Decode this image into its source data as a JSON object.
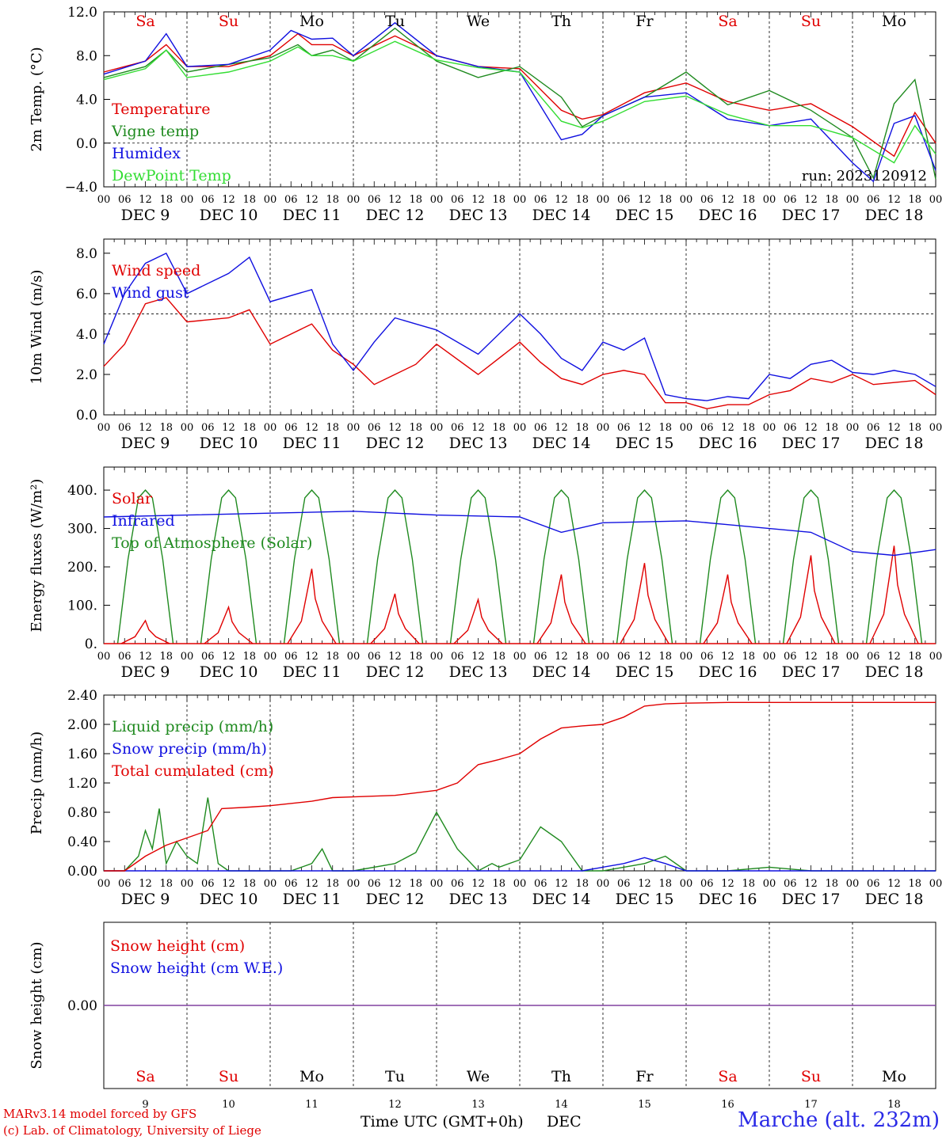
{
  "run_label": "run: 2023120912",
  "footer": {
    "credit_line1": "MARv3.14 model forced by GFS",
    "credit_line2": "(c) Lab. of Climatology, University of Liege",
    "x_title": "Time UTC (GMT+0h)",
    "x_unit": "DEC",
    "station": "Marche (alt. 232m)"
  },
  "days": [
    "Sa",
    "Su",
    "Mo",
    "Tu",
    "We",
    "Th",
    "Fr",
    "Sa",
    "Su",
    "Mo"
  ],
  "weekend_days": [
    0,
    1,
    7,
    8
  ],
  "dates": [
    "DEC  9",
    "DEC 10",
    "DEC 11",
    "DEC 12",
    "DEC 13",
    "DEC 14",
    "DEC 15",
    "DEC 16",
    "DEC 17",
    "DEC 18"
  ],
  "day_numbers": [
    "9",
    "10",
    "11",
    "12",
    "13",
    "14",
    "15",
    "16",
    "17",
    "18"
  ],
  "hour_ticks": [
    "00",
    "06",
    "12",
    "18"
  ],
  "last_hour_tick": "00",
  "colors": {
    "red": "#e00000",
    "green": "#1f8a1f",
    "blue": "#1010e0",
    "lightgreen": "#33dd33",
    "purple": "#8040a0"
  },
  "chart_data": [
    {
      "type": "line",
      "ylabel": "2m Temp. (°C)",
      "ylim": [
        -4,
        12
      ],
      "yticks": [
        "12.0",
        "8.0",
        "4.0",
        "0.0",
        "−4.0"
      ],
      "x_unit": "hours from DEC 9 00 UTC",
      "ref_line": 0,
      "series": [
        {
          "name": "Temperature",
          "color": "red",
          "x": [
            0,
            12,
            18,
            24,
            36,
            48,
            56,
            60,
            66,
            72,
            84,
            96,
            108,
            120,
            132,
            138,
            144,
            156,
            168,
            180,
            192,
            204,
            216,
            228,
            234,
            240
          ],
          "values": [
            6.5,
            7.5,
            9,
            7,
            7,
            8,
            10,
            9,
            9,
            8,
            9.8,
            8,
            7,
            6.8,
            3,
            2.2,
            2.6,
            4.6,
            5.5,
            3.8,
            3,
            3.6,
            1.5,
            -1.2,
            2.8,
            0
          ]
        },
        {
          "name": "Vigne temp",
          "color": "green",
          "x": [
            0,
            12,
            18,
            24,
            36,
            48,
            56,
            60,
            66,
            72,
            84,
            96,
            108,
            120,
            132,
            138,
            144,
            156,
            168,
            180,
            192,
            204,
            216,
            222,
            228,
            234,
            240
          ],
          "values": [
            6,
            7,
            8.5,
            6.5,
            7.2,
            7.8,
            9,
            8,
            8.5,
            7.5,
            10.5,
            7.5,
            6,
            7,
            4.2,
            1.5,
            2.5,
            4.2,
            6.5,
            3.5,
            4.8,
            3,
            0.5,
            -3.2,
            3.6,
            5.8,
            -3.3
          ]
        },
        {
          "name": "Humidex",
          "color": "blue",
          "x": [
            0,
            12,
            18,
            24,
            36,
            48,
            54,
            60,
            66,
            72,
            84,
            96,
            108,
            120,
            132,
            138,
            144,
            156,
            168,
            180,
            192,
            204,
            216,
            222,
            228,
            234,
            240
          ],
          "values": [
            6.3,
            7.5,
            10,
            7,
            7.2,
            8.5,
            10.3,
            9.5,
            9.6,
            8,
            11,
            8,
            7,
            6.5,
            0.3,
            0.8,
            2.5,
            4.2,
            4.6,
            2.2,
            1.6,
            2.2,
            -1.8,
            -3.5,
            1.8,
            2.5,
            -2.5
          ]
        },
        {
          "name": "DewPoint Temp",
          "color": "lightgreen",
          "x": [
            0,
            12,
            18,
            24,
            36,
            48,
            56,
            60,
            66,
            72,
            84,
            96,
            108,
            120,
            132,
            138,
            144,
            156,
            168,
            180,
            192,
            204,
            216,
            228,
            234,
            240
          ],
          "values": [
            5.8,
            6.8,
            8.5,
            6,
            6.5,
            7.5,
            8.8,
            8,
            8,
            7.5,
            9.3,
            7.6,
            6.9,
            6.5,
            2,
            1.4,
            2,
            3.8,
            4.3,
            2.6,
            1.6,
            1.6,
            0.5,
            -1.8,
            1.6,
            -1
          ]
        }
      ]
    },
    {
      "type": "line",
      "ylabel": "10m Wind (m/s)",
      "ylim": [
        0,
        8.7
      ],
      "yticks": [
        "8.0",
        "6.0",
        "4.0",
        "2.0",
        "0.0"
      ],
      "ref_line": 5,
      "series": [
        {
          "name": "Wind speed",
          "color": "red",
          "x": [
            0,
            6,
            12,
            18,
            24,
            36,
            42,
            48,
            60,
            66,
            72,
            78,
            84,
            90,
            96,
            108,
            120,
            126,
            132,
            138,
            144,
            150,
            156,
            162,
            168,
            174,
            180,
            186,
            192,
            198,
            204,
            210,
            216,
            222,
            228,
            234,
            240
          ],
          "values": [
            2.4,
            3.5,
            5.5,
            5.8,
            4.6,
            4.8,
            5.2,
            3.5,
            4.5,
            3.2,
            2.5,
            1.5,
            2,
            2.5,
            3.5,
            2,
            3.6,
            2.6,
            1.8,
            1.5,
            2,
            2.2,
            2,
            0.6,
            0.6,
            0.3,
            0.5,
            0.5,
            1,
            1.2,
            1.8,
            1.6,
            2,
            1.5,
            1.6,
            1.7,
            1
          ]
        },
        {
          "name": "Wind gust",
          "color": "blue",
          "x": [
            0,
            6,
            12,
            18,
            24,
            36,
            42,
            48,
            60,
            66,
            72,
            78,
            84,
            90,
            96,
            108,
            120,
            126,
            132,
            138,
            144,
            150,
            156,
            162,
            168,
            174,
            180,
            186,
            192,
            198,
            204,
            210,
            216,
            222,
            228,
            234,
            240
          ],
          "values": [
            3.5,
            6,
            7.5,
            8,
            6,
            7,
            7.8,
            5.6,
            6.2,
            3.5,
            2.2,
            3.6,
            4.8,
            4.5,
            4.2,
            3,
            5,
            4,
            2.8,
            2.2,
            3.6,
            3.2,
            3.8,
            1,
            0.8,
            0.7,
            0.9,
            0.8,
            2,
            1.8,
            2.5,
            2.7,
            2.1,
            2.0,
            2.2,
            2,
            1.4
          ]
        }
      ]
    },
    {
      "type": "line",
      "ylabel": "Energy fluxes (W/m²)",
      "ylim": [
        0,
        460
      ],
      "yticks": [
        "400.",
        "300.",
        "200.",
        "100.",
        "0."
      ],
      "series": [
        {
          "name": "Solar",
          "color": "red",
          "day_peaks": [
            60,
            95,
            195,
            130,
            115,
            180,
            210,
            180,
            230,
            255
          ]
        },
        {
          "name": "Infrared",
          "color": "blue",
          "x": [
            0,
            24,
            48,
            72,
            96,
            120,
            132,
            144,
            168,
            180,
            192,
            204,
            216,
            228,
            240
          ],
          "values": [
            330,
            335,
            340,
            345,
            335,
            330,
            290,
            315,
            320,
            310,
            300,
            290,
            240,
            230,
            245
          ]
        },
        {
          "name": "Top of Atmosphere (Solar)",
          "color": "green",
          "day_peak": 400
        }
      ]
    },
    {
      "type": "line",
      "ylabel": "Precip (mm/h)",
      "ylim": [
        0,
        2.4
      ],
      "yticks": [
        "2.40",
        "2.00",
        "1.60",
        "1.20",
        "0.80",
        "0.40",
        "0.00"
      ],
      "series": [
        {
          "name": "Liquid precip (mm/h)",
          "color": "green",
          "x": [
            0,
            6,
            10,
            12,
            14,
            16,
            18,
            21,
            24,
            27,
            30,
            33,
            36,
            42,
            48,
            54,
            60,
            63,
            66,
            72,
            84,
            90,
            96,
            102,
            108,
            112,
            114,
            120,
            126,
            132,
            138,
            144,
            150,
            156,
            162,
            168,
            180,
            192,
            204,
            216,
            228,
            240
          ],
          "values": [
            0,
            0,
            0.2,
            0.55,
            0.3,
            0.85,
            0.1,
            0.4,
            0.2,
            0.1,
            1.0,
            0.1,
            0,
            0,
            0,
            0,
            0.1,
            0.3,
            0,
            0,
            0.1,
            0.25,
            0.8,
            0.3,
            0,
            0.1,
            0.05,
            0.15,
            0.6,
            0.4,
            0,
            0,
            0.05,
            0.1,
            0.2,
            0,
            0,
            0.05,
            0,
            0,
            0,
            0
          ]
        },
        {
          "name": "Snow precip (mm/h)",
          "color": "blue",
          "x": [
            0,
            138,
            144,
            150,
            156,
            162,
            168,
            180,
            240
          ],
          "values": [
            0,
            0,
            0.05,
            0.1,
            0.18,
            0.1,
            0,
            0,
            0
          ]
        },
        {
          "name": "Total cumulated (cm)",
          "color": "red",
          "x": [
            0,
            6,
            12,
            18,
            24,
            30,
            34,
            42,
            48,
            60,
            66,
            72,
            84,
            96,
            102,
            108,
            114,
            120,
            126,
            132,
            138,
            144,
            150,
            156,
            162,
            168,
            180,
            240
          ],
          "values": [
            0,
            0,
            0.2,
            0.35,
            0.45,
            0.55,
            0.85,
            0.87,
            0.89,
            0.95,
            1.0,
            1.01,
            1.03,
            1.1,
            1.2,
            1.45,
            1.52,
            1.6,
            1.8,
            1.95,
            1.98,
            2.0,
            2.1,
            2.25,
            2.28,
            2.29,
            2.3,
            2.3
          ]
        }
      ]
    },
    {
      "type": "line",
      "ylabel": "Snow height (cm)",
      "ylim": [
        -1,
        1
      ],
      "yticks": [
        "0.00"
      ],
      "series": [
        {
          "name": "Snow height (cm)",
          "color": "red",
          "x": [
            0,
            240
          ],
          "values": [
            0,
            0
          ]
        },
        {
          "name": "Snow height (cm W.E.)",
          "color": "blue",
          "x": [
            0,
            240
          ],
          "values": [
            0,
            0
          ]
        }
      ]
    }
  ]
}
